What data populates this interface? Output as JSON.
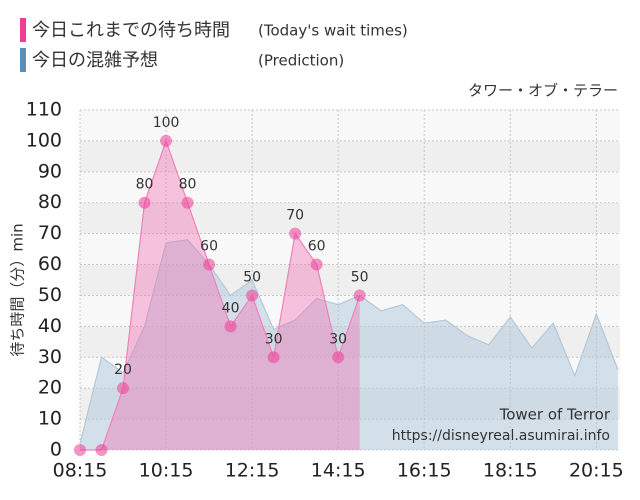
{
  "chart_data": {
    "type": "area",
    "subtitle": "タワー・オブ・テラー",
    "y_label": "待ち時間（分）min",
    "annotations": [
      "Tower of Terror",
      "https://disneyreal.asumirai.info"
    ],
    "xlim": [
      "08:15",
      "20:48"
    ],
    "xticks": [
      "08:15",
      "10:15",
      "12:15",
      "14:15",
      "16:15",
      "18:15",
      "20:15"
    ],
    "ylim": [
      0,
      110
    ],
    "yticks": [
      0,
      10,
      20,
      30,
      40,
      50,
      60,
      70,
      80,
      90,
      100,
      110
    ],
    "grid": true,
    "series": [
      {
        "name": "今日の混雑予想",
        "name_en": "(Prediction)",
        "color": "#5b8db8",
        "fill": "rgba(175,200,218,0.5)",
        "stroke": "#b4c8d8",
        "x": [
          "08:15",
          "08:45",
          "09:15",
          "09:45",
          "10:15",
          "10:45",
          "11:15",
          "11:45",
          "12:15",
          "12:45",
          "13:15",
          "13:45",
          "14:15",
          "14:45",
          "15:15",
          "15:45",
          "16:15",
          "16:45",
          "17:15",
          "17:45",
          "18:15",
          "18:45",
          "19:15",
          "19:45",
          "20:15",
          "20:45"
        ],
        "values": [
          2,
          30,
          25,
          40,
          67,
          68,
          60,
          50,
          55,
          39,
          42,
          49,
          47,
          50,
          45,
          47,
          41,
          42,
          37,
          34,
          43,
          33,
          41,
          24,
          44,
          26
        ]
      },
      {
        "name": "今日これまでの待ち時間",
        "name_en": "(Today's wait times)",
        "color": "#ee3d96",
        "fill": "rgba(240,110,180,0.4)",
        "stroke": "#ee82bb",
        "x": [
          "08:15",
          "08:45",
          "09:15",
          "09:45",
          "10:15",
          "10:45",
          "11:15",
          "11:45",
          "12:15",
          "12:45",
          "13:15",
          "13:45",
          "14:15",
          "14:45"
        ],
        "values": [
          0,
          0,
          20,
          80,
          100,
          80,
          60,
          40,
          50,
          30,
          70,
          60,
          30,
          50
        ]
      }
    ]
  }
}
